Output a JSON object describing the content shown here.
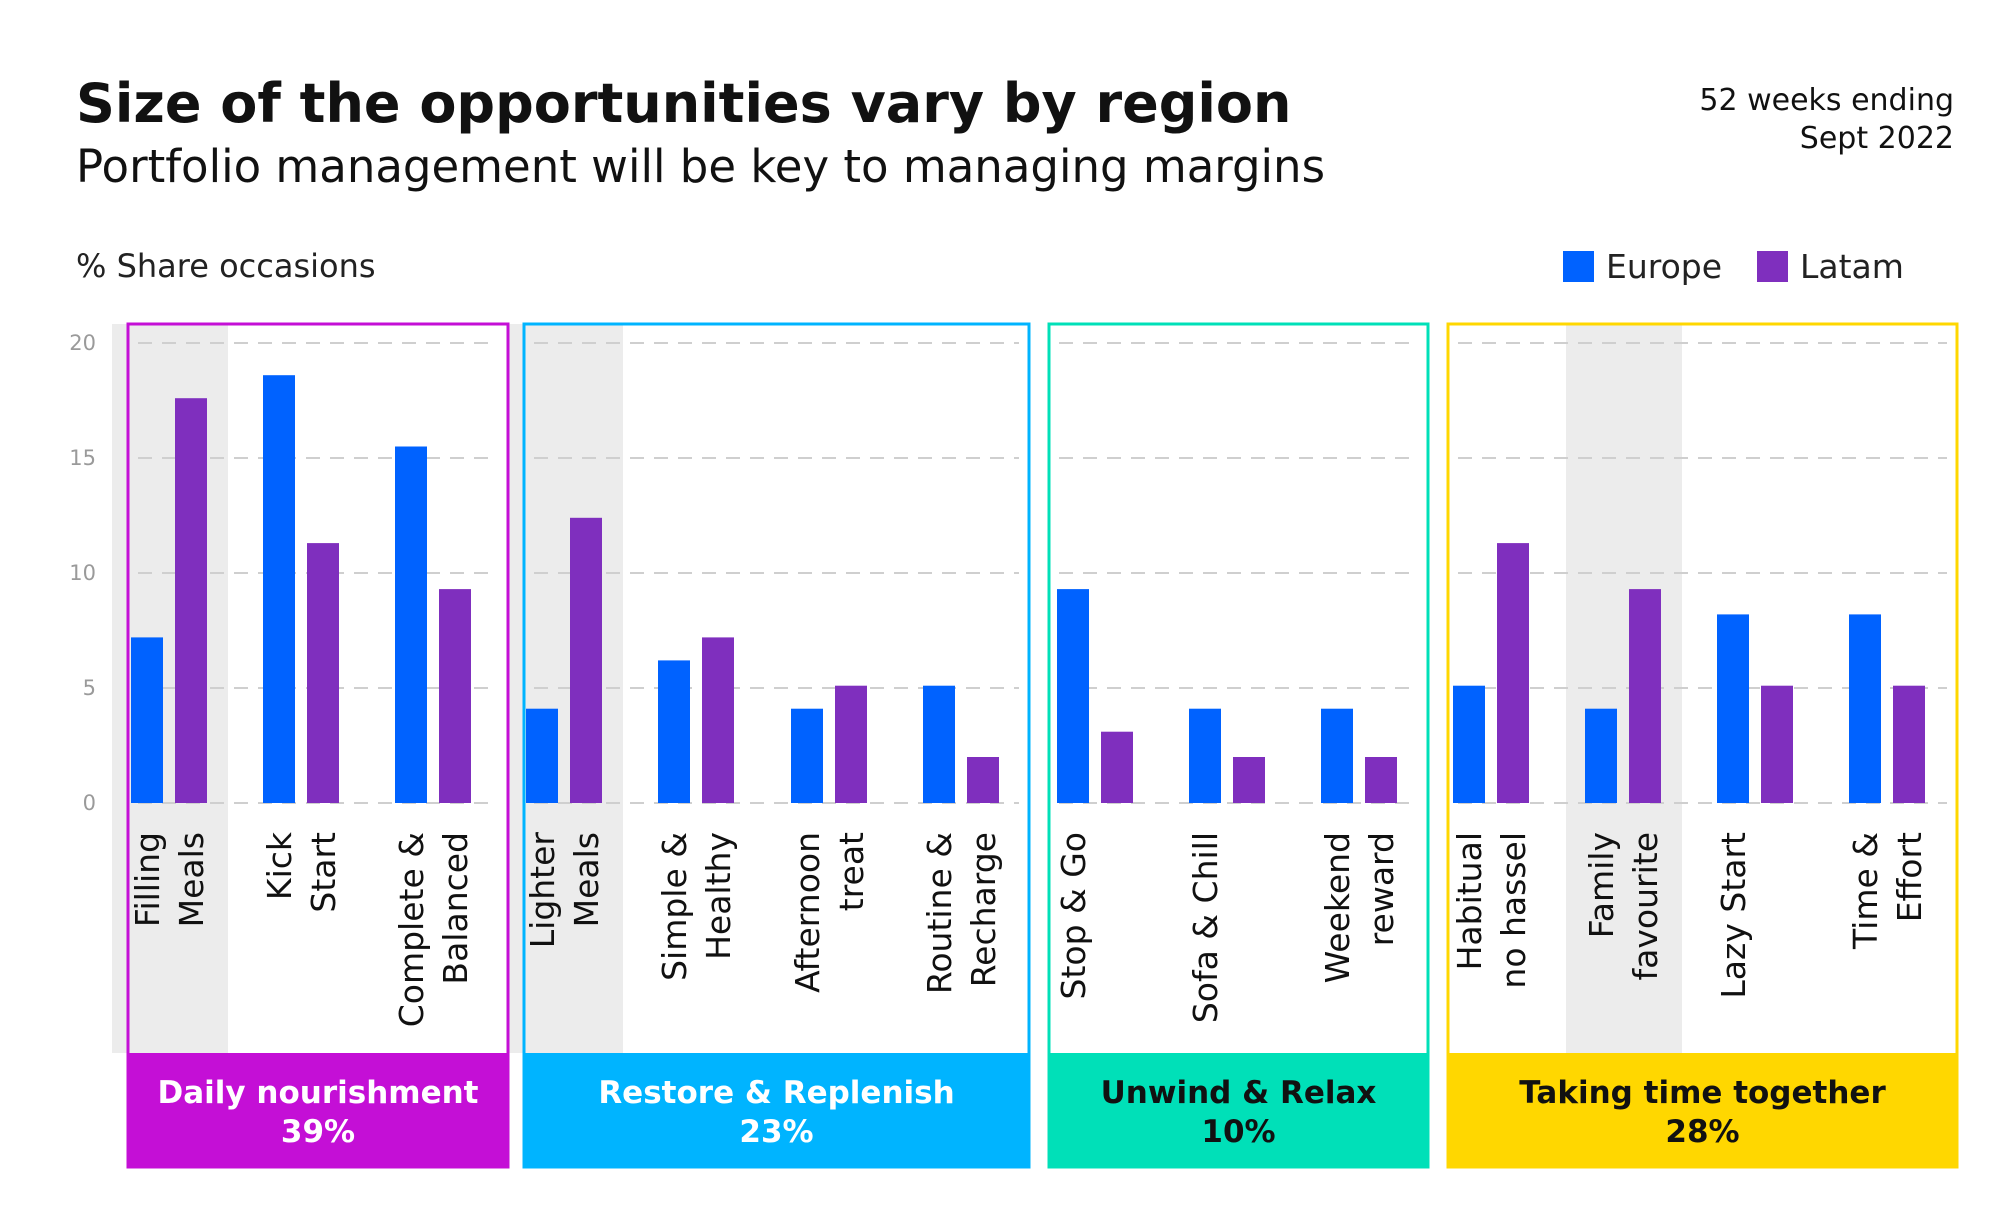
{
  "title": "Size of the opportunities vary by region",
  "subtitle": "Portfolio management will be key to managing margins",
  "period": {
    "line1": "52 weeks ending",
    "line2": "Sept 2022"
  },
  "ylabel": "% Share occasions",
  "legend": [
    {
      "name": "Europe",
      "color": "#0062ff"
    },
    {
      "name": "Latam",
      "color": "#7f2fbe"
    }
  ],
  "chart_data": {
    "type": "bar",
    "ylabel": "% Share occasions",
    "ylim": [
      0,
      20
    ],
    "yticks": [
      "0",
      "5",
      "10",
      "15",
      "20"
    ],
    "grid": true,
    "legend_position": "top-right",
    "series": [
      {
        "name": "Europe",
        "color": "#0062ff",
        "values": [
          7.2,
          18.6,
          15.5,
          4.1,
          6.2,
          4.1,
          5.1,
          9.3,
          4.1,
          4.1,
          5.1,
          4.1,
          8.2,
          8.2
        ]
      },
      {
        "name": "Latam",
        "color": "#7f2fbe",
        "values": [
          17.6,
          11.3,
          9.3,
          12.4,
          7.2,
          5.1,
          2.0,
          3.1,
          2.0,
          2.0,
          11.3,
          9.3,
          5.1,
          5.1
        ]
      }
    ],
    "categories": [
      {
        "line1": "Filling",
        "line2": "Meals",
        "highlight": true
      },
      {
        "line1": "Kick",
        "line2": "Start",
        "highlight": false
      },
      {
        "line1": "Complete &",
        "line2": "Balanced",
        "highlight": false
      },
      {
        "line1": "Lighter",
        "line2": "Meals",
        "highlight": true
      },
      {
        "line1": "Simple &",
        "line2": "Healthy",
        "highlight": false
      },
      {
        "line1": "Afternoon",
        "line2": "treat",
        "highlight": false
      },
      {
        "line1": "Routine &",
        "line2": "Recharge",
        "highlight": false
      },
      {
        "line1": "Stop & Go",
        "line2": "",
        "highlight": false
      },
      {
        "line1": "Sofa & Chill",
        "line2": "",
        "highlight": false
      },
      {
        "line1": "Weekend",
        "line2": "reward",
        "highlight": false
      },
      {
        "line1": "Habitual",
        "line2": "no hassel",
        "highlight": false
      },
      {
        "line1": "Family",
        "line2": "favourite",
        "highlight": true
      },
      {
        "line1": "Lazy Start",
        "line2": "",
        "highlight": false
      },
      {
        "line1": "Time &",
        "line2": "Effort",
        "highlight": false
      }
    ],
    "groups": [
      {
        "name": "Daily nourishment",
        "share": "39%",
        "color": "#c40fd6",
        "text_color": "#ffffff",
        "count": 3
      },
      {
        "name": "Restore & Replenish",
        "share": "23%",
        "color": "#00b4ff",
        "text_color": "#ffffff",
        "count": 4
      },
      {
        "name": "Unwind & Relax",
        "share": "10%",
        "color": "#00e0b8",
        "text_color": "#111111",
        "count": 3
      },
      {
        "name": "Taking time together",
        "share": "28%",
        "color": "#ffd700",
        "text_color": "#111111",
        "count": 4
      }
    ]
  }
}
